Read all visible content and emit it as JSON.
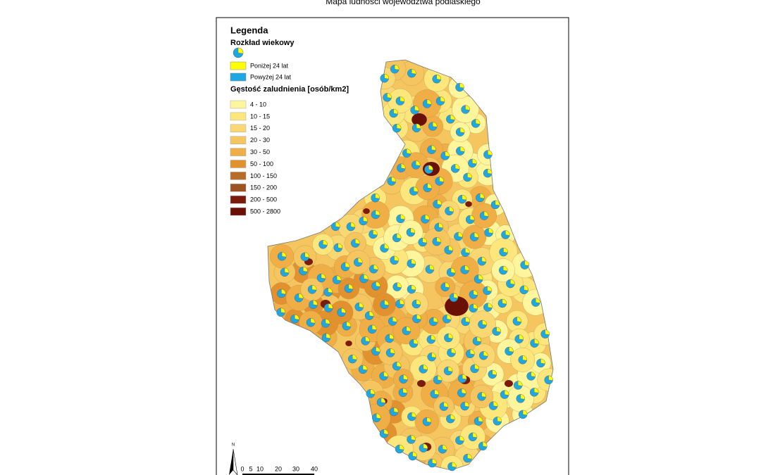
{
  "title": "Mapa ludności województwa podlaskiego",
  "legend": {
    "title": "Legenda",
    "age_title": "Rozkład wiekowy",
    "age_items": [
      {
        "label": "Poniżej 24 lat",
        "color": "#ffff00"
      },
      {
        "label": "Powyżej 24 lat",
        "color": "#1ea7e1"
      }
    ],
    "density_title": "Gęstość zaludnienia [osób/km2]",
    "density_items": [
      {
        "label": "4 - 10",
        "color": "#fff59c"
      },
      {
        "label": "10 - 15",
        "color": "#fde77c"
      },
      {
        "label": "15 - 20",
        "color": "#f9d773"
      },
      {
        "label": "20 - 30",
        "color": "#f5c660"
      },
      {
        "label": "30 - 50",
        "color": "#f0ae46"
      },
      {
        "label": "50 - 100",
        "color": "#e2912f"
      },
      {
        "label": "100 - 150",
        "color": "#b96b28"
      },
      {
        "label": "150 - 200",
        "color": "#9f5221"
      },
      {
        "label": "200 - 500",
        "color": "#7b1b0b"
      },
      {
        "label": "500 - 2800",
        "color": "#6a1005"
      }
    ]
  },
  "scale": {
    "north": "N",
    "labels": [
      "0",
      "5",
      "10",
      "20",
      "30",
      "40"
    ]
  }
}
